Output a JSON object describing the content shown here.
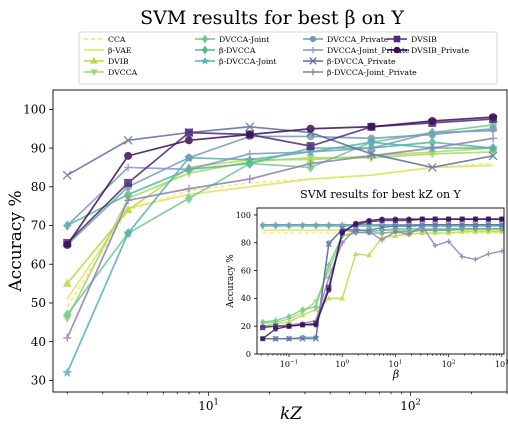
{
  "chart_data": [
    {
      "type": "line",
      "title": "SVM results for best β on Y",
      "xlabel": "kZ",
      "ylabel": "Accuracy %",
      "xscale": "log",
      "x": [
        2,
        4,
        8,
        16,
        32,
        64,
        128,
        256
      ],
      "xlim": [
        1.7,
        300
      ],
      "ylim": [
        27,
        105
      ],
      "yticks": [
        30,
        40,
        50,
        60,
        70,
        80,
        90,
        100
      ],
      "xticks": [
        {
          "value": 10,
          "base": "10",
          "exp": "1"
        },
        {
          "value": 100,
          "base": "10",
          "exp": "2"
        }
      ],
      "legend_position": "top",
      "series": [
        {
          "name": "CCA",
          "color": "#f5ea5a",
          "marker": "none",
          "dash": "4,3",
          "values": [
            49,
            74,
            79,
            81,
            82,
            83,
            85,
            86
          ]
        },
        {
          "name": "β-VAE",
          "color": "#dde35a",
          "marker": "none",
          "dash": "",
          "values": [
            51,
            74.5,
            78,
            80,
            82,
            83,
            85,
            85.5
          ]
        },
        {
          "name": "DVIB",
          "color": "#b5dc3d",
          "marker": "triangle-up",
          "dash": "",
          "values": [
            55,
            74,
            85,
            87,
            87,
            88,
            89,
            90
          ]
        },
        {
          "name": "DVCCA",
          "color": "#a0d875",
          "marker": "triangle-down",
          "dash": "",
          "values": [
            46,
            77,
            83.5,
            86.5,
            87.5,
            87.5,
            88.5,
            89
          ]
        },
        {
          "name": "DVCCA-Joint",
          "color": "#6cc88e",
          "marker": "diamond",
          "dash": "",
          "values": [
            47,
            68,
            77,
            86,
            85,
            91.5,
            94,
            96
          ]
        },
        {
          "name": "β-DVCCA",
          "color": "#4fbb8f",
          "marker": "diamond",
          "dash": "",
          "values": [
            70,
            78,
            84.5,
            86,
            90,
            90,
            91.5,
            90
          ]
        },
        {
          "name": "β-DVCCA-Joint",
          "color": "#55aebb",
          "marker": "star",
          "dash": "",
          "values": [
            32,
            68,
            87.5,
            87,
            89,
            91.5,
            90,
            90
          ]
        },
        {
          "name": "DVCCA_Private",
          "color": "#6b9eb5",
          "marker": "octagon",
          "dash": "",
          "values": [
            65,
            80,
            87.5,
            93,
            93,
            92.5,
            93.5,
            95
          ]
        },
        {
          "name": "DVCCA-Joint_Private",
          "color": "#7f97c8",
          "marker": "plus",
          "dash": "",
          "values": [
            70,
            85,
            84.5,
            88.5,
            89,
            90,
            94,
            94.5
          ]
        },
        {
          "name": "β-DVCCA_Private",
          "color": "#5a6ea3",
          "marker": "x",
          "dash": "",
          "values": [
            83,
            92,
            94,
            95.5,
            94,
            88.5,
            85,
            88
          ]
        },
        {
          "name": "β-DVCCA-Joint_Private",
          "color": "#8a7cb5",
          "marker": "plus",
          "dash": "",
          "values": [
            41,
            76.5,
            79.5,
            82,
            86,
            88,
            90,
            92.5
          ]
        },
        {
          "name": "DVSIB",
          "color": "#4c2a7c",
          "marker": "square",
          "dash": "",
          "values": [
            65.5,
            81,
            94,
            93.5,
            90.5,
            95.5,
            96.5,
            97.5
          ]
        },
        {
          "name": "DVSIB_Private",
          "color": "#3b0f55",
          "marker": "circle",
          "dash": "",
          "values": [
            65,
            88,
            92,
            93.5,
            95,
            95.5,
            97,
            98
          ]
        }
      ]
    },
    {
      "type": "line",
      "title": "SVM results for best kZ on Y",
      "xlabel": "β",
      "ylabel": "Accuracy %",
      "xscale": "log",
      "x": [
        0.032,
        0.056,
        0.1,
        0.18,
        0.32,
        0.56,
        1,
        1.8,
        3.2,
        5.6,
        10,
        18,
        32,
        56,
        100,
        180,
        320,
        560,
        1000
      ],
      "xlim": [
        0.025,
        1100
      ],
      "ylim": [
        0,
        105
      ],
      "yticks": [
        0,
        20,
        40,
        60,
        80,
        100
      ],
      "xticks": [
        {
          "value": 0.1,
          "base": "10",
          "exp": "−1"
        },
        {
          "value": 1,
          "base": "10",
          "exp": "0"
        },
        {
          "value": 10,
          "base": "10",
          "exp": "1"
        },
        {
          "value": 100,
          "base": "10",
          "exp": "2"
        },
        {
          "value": 1000,
          "base": "10",
          "exp": "3"
        }
      ],
      "series": [
        {
          "name": "CCA",
          "color": "#f5ea5a",
          "marker": "none",
          "dash": "4,3",
          "values": [
            87,
            87,
            87,
            87,
            87,
            87,
            87,
            87,
            87,
            87,
            87,
            87,
            87,
            87,
            87,
            87,
            87,
            87,
            87
          ]
        },
        {
          "name": "β-VAE",
          "color": "#dde35a",
          "marker": "none",
          "dash": "",
          "values": [
            89,
            89,
            89,
            89,
            89,
            89,
            89,
            89,
            89,
            89,
            89,
            89,
            89,
            89,
            89,
            89,
            89,
            89,
            89
          ]
        },
        {
          "name": "DVIB",
          "color": "#b5dc3d",
          "marker": "triangle-up",
          "dash": "",
          "values": [
            20,
            22,
            23,
            28,
            32,
            40,
            40,
            72,
            71,
            84,
            85,
            86,
            87,
            87,
            87,
            88,
            88,
            88,
            88
          ]
        },
        {
          "name": "DVCCA",
          "color": "#a0d875",
          "marker": "triangle-down",
          "dash": "",
          "values": [
            22,
            23,
            25,
            30,
            38,
            60,
            85,
            87,
            88,
            89,
            89,
            89,
            89,
            89,
            90,
            90,
            90,
            90,
            90
          ]
        },
        {
          "name": "DVCCA-Joint",
          "color": "#6cc88e",
          "marker": "diamond",
          "dash": "",
          "values": [
            23,
            24,
            27,
            32,
            34,
            64,
            85,
            87,
            88,
            89,
            90,
            90,
            90,
            90,
            90,
            90,
            90,
            90,
            90
          ]
        },
        {
          "name": "β-DVCCA",
          "color": "#4fbb8f",
          "marker": "diamond",
          "dash": "",
          "values": [
            92,
            92,
            92,
            92,
            92,
            92,
            92,
            92,
            92,
            92,
            92,
            92,
            92,
            92,
            92,
            92,
            92,
            92,
            92
          ]
        },
        {
          "name": "β-DVCCA-Joint",
          "color": "#55aebb",
          "marker": "star",
          "dash": "",
          "values": [
            93,
            93,
            93,
            93,
            93,
            93,
            93,
            93,
            93,
            93,
            93,
            93,
            93,
            93,
            93,
            93,
            93,
            93,
            93
          ]
        },
        {
          "name": "DVCCA_Private",
          "color": "#6b9eb5",
          "marker": "octagon",
          "dash": "",
          "values": [
            11,
            11,
            11,
            12,
            12,
            80,
            89,
            88,
            87,
            87,
            88,
            88,
            89,
            89,
            89,
            90,
            90,
            90,
            90
          ]
        },
        {
          "name": "DVCCA-Joint_Private",
          "color": "#7f97c8",
          "marker": "plus",
          "dash": "",
          "values": [
            93,
            93,
            93,
            93,
            93,
            93,
            93,
            93,
            93,
            93,
            93,
            93,
            93,
            93,
            93,
            93,
            93,
            93,
            93
          ]
        },
        {
          "name": "β-DVCCA_Private",
          "color": "#5a6ea3",
          "marker": "x",
          "dash": "",
          "values": [
            11,
            11,
            11,
            11,
            11,
            79,
            90,
            89,
            89,
            91,
            92,
            92,
            93,
            93,
            93,
            93,
            93,
            93,
            93
          ]
        },
        {
          "name": "β-DVCCA-Joint_Private",
          "color": "#8a7cb5",
          "marker": "plus",
          "dash": "",
          "values": [
            20,
            20,
            21,
            22,
            24,
            55,
            80,
            90,
            88,
            82,
            88,
            86,
            92,
            78,
            81,
            70,
            68,
            72,
            74
          ]
        },
        {
          "name": "DVSIB",
          "color": "#4c2a7c",
          "marker": "square",
          "dash": "",
          "values": [
            19,
            20,
            20,
            21,
            22,
            48,
            88,
            93,
            95,
            96,
            96,
            96,
            97,
            97,
            97,
            97,
            97,
            97,
            97
          ]
        },
        {
          "name": "DVSIB_Private",
          "color": "#3b0f55",
          "marker": "circle",
          "dash": "",
          "values": [
            11,
            18,
            20,
            21,
            21,
            46,
            87,
            94,
            96,
            97,
            97,
            97,
            97,
            97,
            97,
            97,
            97,
            97,
            97
          ]
        }
      ]
    }
  ]
}
